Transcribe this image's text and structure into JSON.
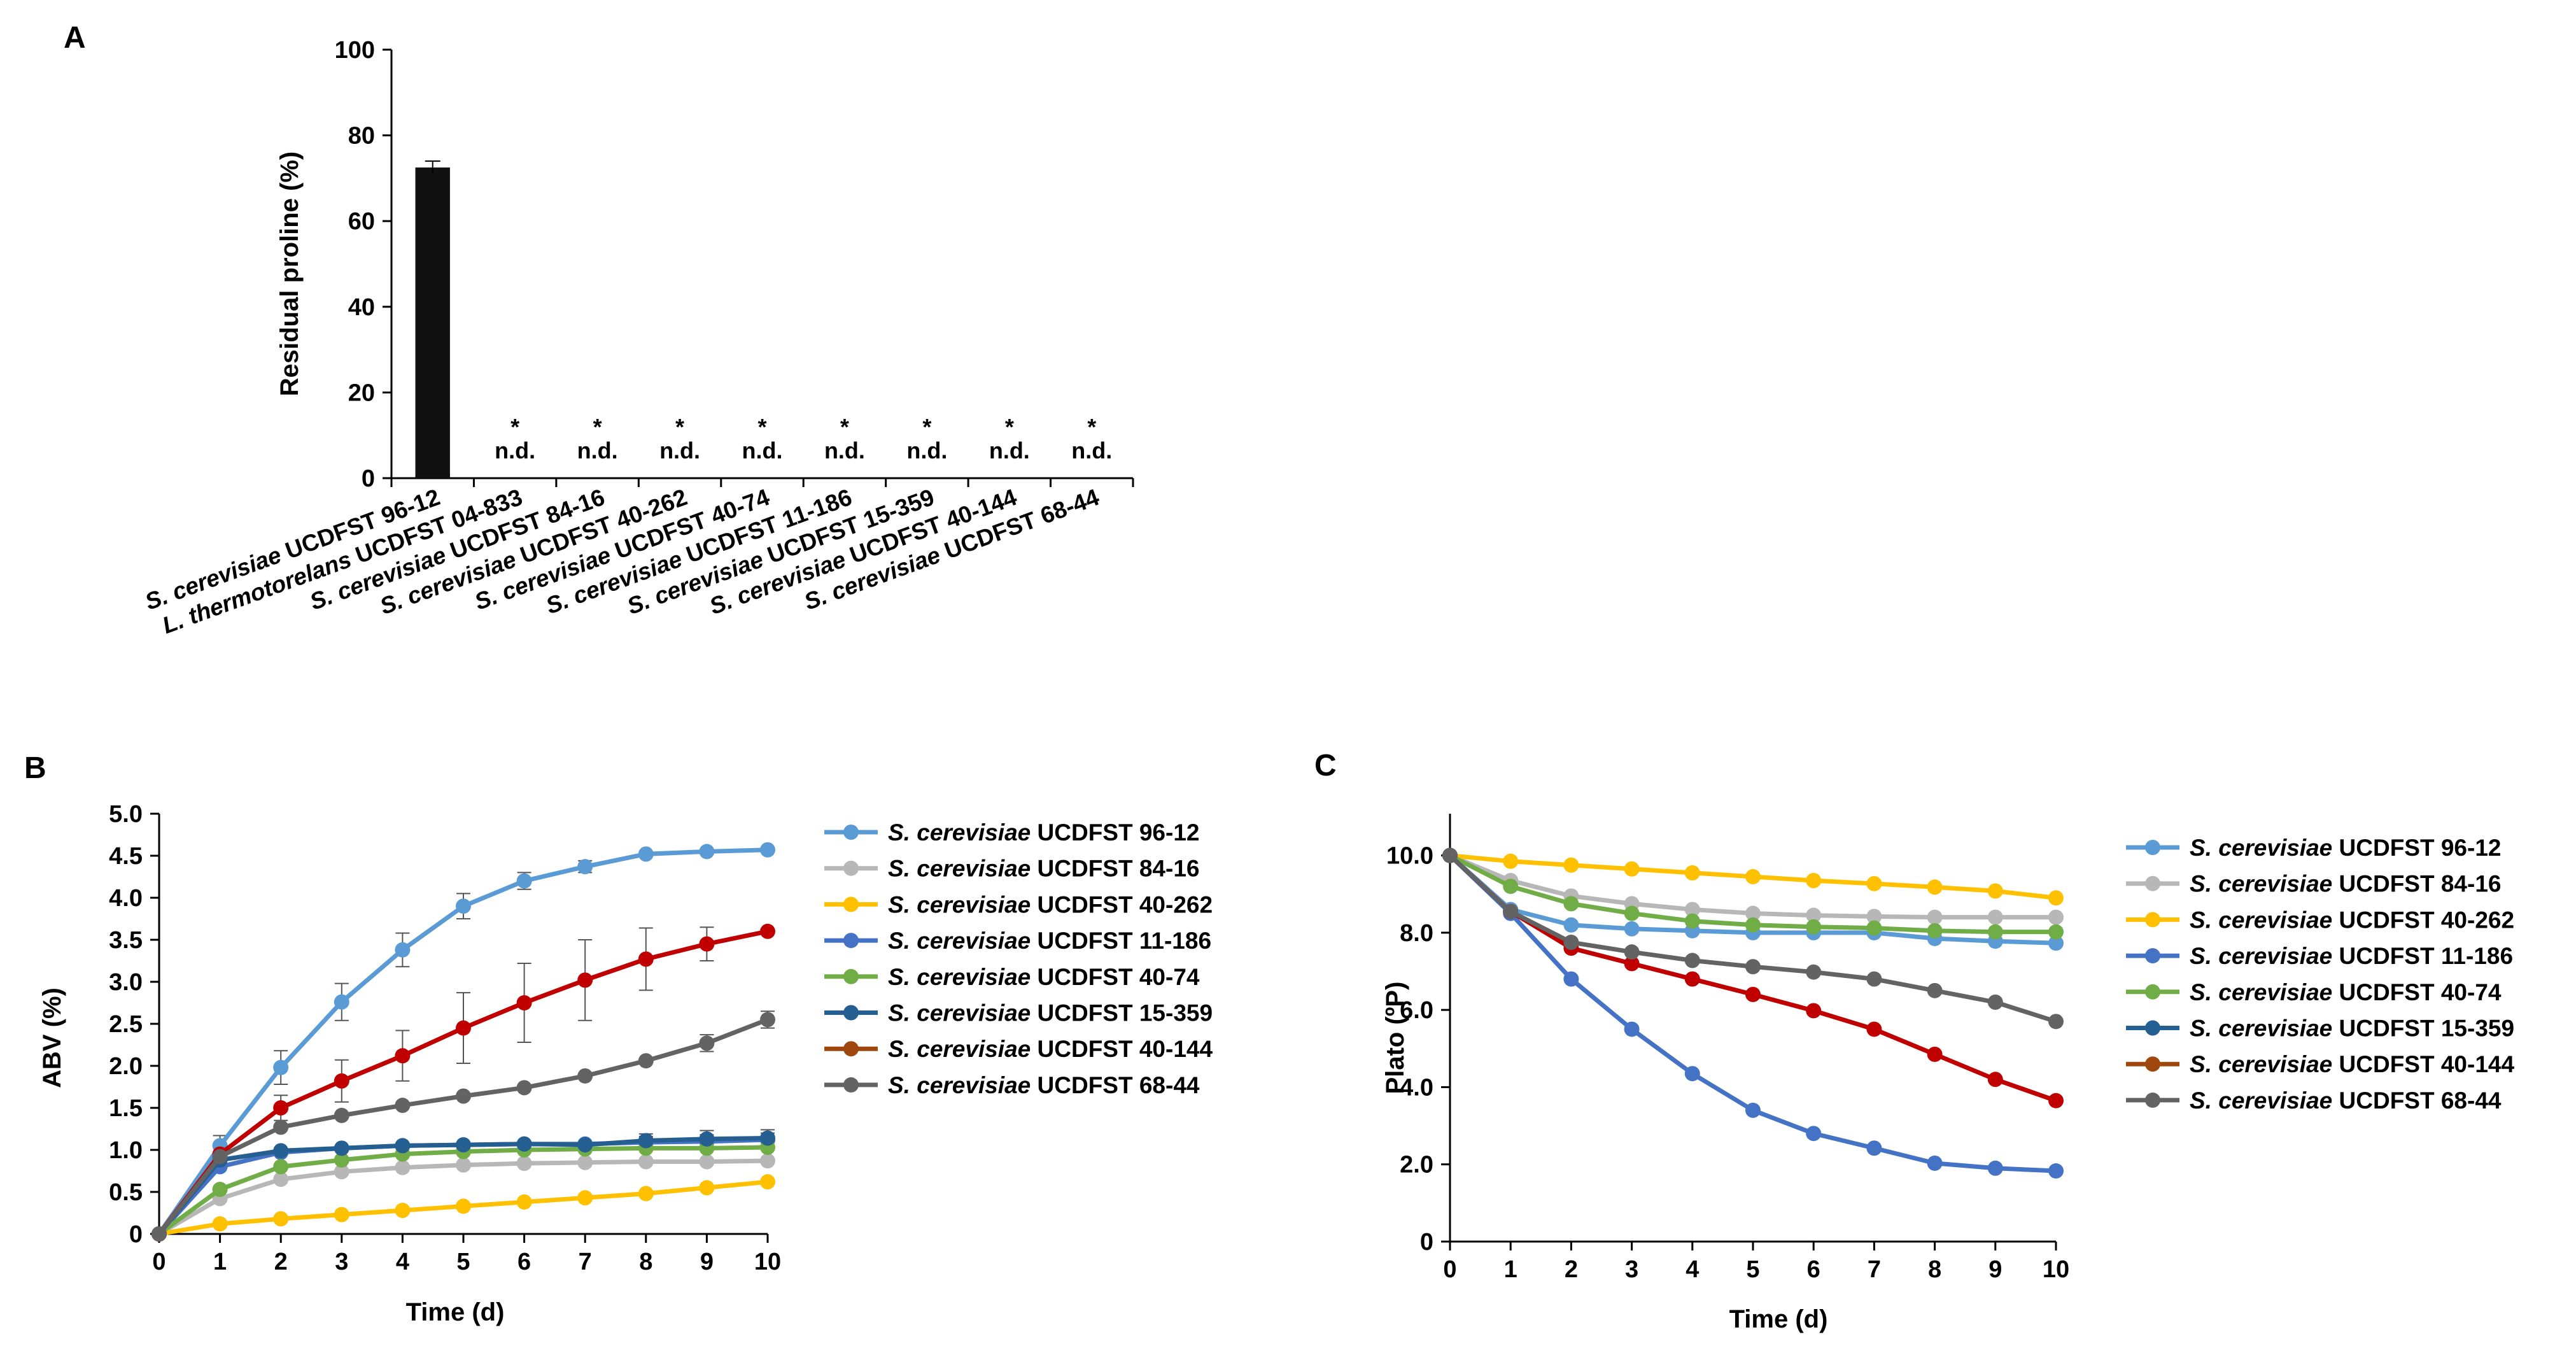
{
  "chart_data": [
    {
      "panel": "A",
      "type": "bar",
      "ylabel": "Residual proline (%)",
      "ylim": [
        0,
        100
      ],
      "yticks": [
        "0",
        "20",
        "40",
        "60",
        "80",
        "100"
      ],
      "categories": [
        {
          "species": "S. cerevisiae",
          "strain": "UCDFST 96-12"
        },
        {
          "species": "L. thermotorelans",
          "strain": "UCDFST 04-833"
        },
        {
          "species": "S. cerevisiae",
          "strain": "UCDFST 84-16"
        },
        {
          "species": "S. cerevisiae",
          "strain": "UCDFST 40-262"
        },
        {
          "species": "S. cerevisiae",
          "strain": "UCDFST 40-74"
        },
        {
          "species": "S. cerevisiae",
          "strain": "UCDFST 11-186"
        },
        {
          "species": "S. cerevisiae",
          "strain": "UCDFST 15-359"
        },
        {
          "species": "S. cerevisiae",
          "strain": "UCDFST 40-144"
        },
        {
          "species": "S. cerevisiae",
          "strain": "UCDFST 68-44"
        }
      ],
      "values": [
        72.5,
        null,
        null,
        null,
        null,
        null,
        null,
        null,
        null
      ],
      "errors": [
        1.5,
        null,
        null,
        null,
        null,
        null,
        null,
        null,
        null
      ],
      "annotations": [
        null,
        [
          "*",
          "n.d."
        ],
        [
          "*",
          "n.d."
        ],
        [
          "*",
          "n.d."
        ],
        [
          "*",
          "n.d."
        ],
        [
          "*",
          "n.d."
        ],
        [
          "*",
          "n.d."
        ],
        [
          "*",
          "n.d."
        ],
        [
          "*",
          "n.d."
        ]
      ],
      "bar_color": "#111111"
    },
    {
      "panel": "B",
      "type": "line",
      "xlabel": "Time (d)",
      "ylabel": "ABV (%)",
      "x": [
        0,
        1,
        2,
        3,
        4,
        5,
        6,
        7,
        8,
        9,
        10
      ],
      "xticks": [
        "0",
        "1",
        "2",
        "3",
        "4",
        "5",
        "6",
        "7",
        "8",
        "9",
        "10"
      ],
      "ylim": [
        0,
        5
      ],
      "yticks": [
        "0",
        "0.5",
        "1.0",
        "1.5",
        "2.0",
        "2.5",
        "3.0",
        "3.5",
        "4.0",
        "4.5",
        "5.0"
      ],
      "series": [
        {
          "species": "S. cerevisiae",
          "strain": "UCDFST 96-12",
          "color": "#5b9bd5",
          "values": [
            0,
            1.05,
            1.98,
            2.76,
            3.38,
            3.9,
            4.2,
            4.37,
            4.52,
            4.55,
            4.57
          ],
          "errors": [
            0,
            0.12,
            0.2,
            0.22,
            0.2,
            0.15,
            0.1,
            0.07,
            0.05,
            0.05,
            0.05
          ]
        },
        {
          "species": "S. cerevisiae",
          "strain": "UCDFST 84-16",
          "color": "#b7b7b7",
          "values": [
            0,
            0.42,
            0.65,
            0.74,
            0.79,
            0.82,
            0.84,
            0.85,
            0.86,
            0.86,
            0.87
          ],
          "errors": [
            0,
            0.03,
            0.03,
            0.03,
            0.03,
            0.03,
            0.03,
            0.03,
            0.03,
            0.03,
            0.03
          ]
        },
        {
          "species": "S. cerevisiae",
          "strain": "UCDFST 40-262",
          "color": "#ffc000",
          "values": [
            0,
            0.12,
            0.18,
            0.23,
            0.28,
            0.33,
            0.38,
            0.43,
            0.48,
            0.55,
            0.62
          ],
          "errors": [
            0,
            0.02,
            0.02,
            0.02,
            0.02,
            0.02,
            0.02,
            0.02,
            0.03,
            0.03,
            0.03
          ]
        },
        {
          "species": "S. cerevisiae",
          "strain": "UCDFST 11-186",
          "color": "#4472c4",
          "values": [
            0,
            0.8,
            0.97,
            1.02,
            1.05,
            1.06,
            1.07,
            1.07,
            1.09,
            1.1,
            1.12
          ],
          "errors": [
            0,
            0.05,
            0.05,
            0.05,
            0.05,
            0.05,
            0.05,
            0.05,
            0.07,
            0.08,
            0.08
          ]
        },
        {
          "species": "S. cerevisiae",
          "strain": "UCDFST 40-74",
          "color": "#70ad47",
          "values": [
            0,
            0.53,
            0.8,
            0.88,
            0.95,
            0.98,
            1.0,
            1.01,
            1.02,
            1.02,
            1.03
          ],
          "errors": [
            0,
            0.05,
            0.05,
            0.04,
            0.04,
            0.04,
            0.04,
            0.04,
            0.04,
            0.04,
            0.04
          ]
        },
        {
          "species": "S. cerevisiae",
          "strain": "UCDFST 15-359",
          "color": "#255e91",
          "values": [
            0,
            0.88,
            0.99,
            1.02,
            1.05,
            1.06,
            1.07,
            1.06,
            1.11,
            1.13,
            1.14
          ],
          "errors": [
            0,
            0.05,
            0.05,
            0.05,
            0.05,
            0.05,
            0.05,
            0.05,
            0.08,
            0.1,
            0.1
          ]
        },
        {
          "species": "S. cerevisiae",
          "strain": "UCDFST 40-144",
          "color": "#9e480e",
          "values": [
            0,
            0.95,
            1.5,
            1.82,
            2.12,
            2.45,
            2.75,
            3.02,
            3.27,
            3.45,
            3.6
          ],
          "errors": [
            0,
            0.1,
            0.15,
            0.25,
            0.3,
            0.42,
            0.47,
            0.48,
            0.37,
            0.2,
            0.05
          ]
        },
        {
          "species": "S. cerevisiae",
          "strain": "UCDFST 68-44",
          "color": "#636363",
          "values": [
            0,
            0.92,
            1.27,
            1.41,
            1.53,
            1.64,
            1.74,
            1.88,
            2.06,
            2.27,
            2.55
          ],
          "errors": [
            0,
            0.05,
            0.05,
            0.05,
            0.05,
            0.05,
            0.05,
            0.05,
            0.05,
            0.1,
            0.1
          ]
        }
      ],
      "plot_series_override": {
        "UCDFST 40-144": "#c00000"
      }
    },
    {
      "panel": "C",
      "type": "line",
      "xlabel": "Time (d)",
      "ylabel": "Plato (ºP)",
      "x": [
        0,
        1,
        2,
        3,
        4,
        5,
        6,
        7,
        8,
        9,
        10
      ],
      "xticks": [
        "0",
        "1",
        "2",
        "3",
        "4",
        "5",
        "6",
        "7",
        "8",
        "9",
        "10"
      ],
      "ylim": [
        0,
        10.9
      ],
      "yticks": [
        "0",
        "2.0",
        "4.0",
        "6.0",
        "8.0",
        "10.0"
      ],
      "series": [
        {
          "species": "S. cerevisiae",
          "strain": "UCDFST 96-12",
          "color": "#5b9bd5",
          "values": [
            10.0,
            8.6,
            8.2,
            8.1,
            8.05,
            8.0,
            8.0,
            8.0,
            7.85,
            7.78,
            7.73
          ]
        },
        {
          "species": "S. cerevisiae",
          "strain": "UCDFST 84-16",
          "color": "#b7b7b7",
          "values": [
            10.0,
            9.35,
            8.95,
            8.75,
            8.6,
            8.5,
            8.45,
            8.42,
            8.4,
            8.4,
            8.4
          ]
        },
        {
          "species": "S. cerevisiae",
          "strain": "UCDFST 40-262",
          "color": "#ffc000",
          "values": [
            10.0,
            9.85,
            9.75,
            9.65,
            9.55,
            9.45,
            9.35,
            9.27,
            9.18,
            9.08,
            8.9
          ]
        },
        {
          "species": "S. cerevisiae",
          "strain": "UCDFST 11-186",
          "color": "#4472c4",
          "values": [
            10.0,
            8.5,
            6.8,
            5.5,
            4.35,
            3.4,
            2.8,
            2.42,
            2.03,
            1.9,
            1.83
          ]
        },
        {
          "species": "S. cerevisiae",
          "strain": "UCDFST 40-74",
          "color": "#70ad47",
          "values": [
            10.0,
            9.2,
            8.75,
            8.5,
            8.3,
            8.2,
            8.15,
            8.12,
            8.05,
            8.02,
            8.02
          ]
        },
        {
          "species": "S. cerevisiae",
          "strain": "UCDFST 15-359",
          "color": "#255e91",
          "values": [
            10.0,
            null,
            null,
            null,
            null,
            null,
            null,
            null,
            null,
            null,
            null
          ]
        },
        {
          "species": "S. cerevisiae",
          "strain": "UCDFST 40-144",
          "color": "#9e480e",
          "values": [
            10.0,
            8.55,
            7.6,
            7.2,
            6.8,
            6.4,
            5.98,
            5.5,
            4.85,
            4.2,
            3.65
          ]
        },
        {
          "species": "S. cerevisiae",
          "strain": "UCDFST 68-44",
          "color": "#636363",
          "values": [
            10.0,
            8.55,
            7.75,
            7.5,
            7.28,
            7.12,
            6.98,
            6.8,
            6.5,
            6.2,
            5.7
          ]
        }
      ],
      "plot_series_override": {
        "UCDFST 40-144": "#c00000"
      }
    }
  ]
}
